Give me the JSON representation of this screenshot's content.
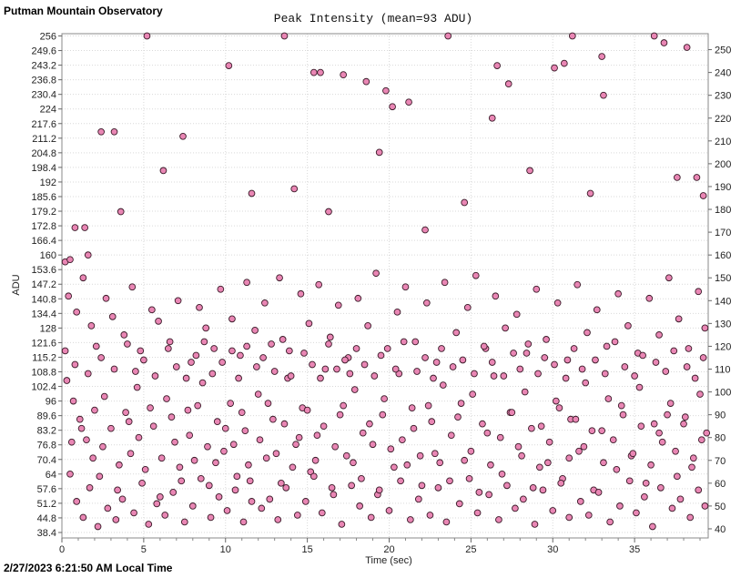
{
  "header": {
    "observatory": "Putman Mountain Observatory"
  },
  "footer": {
    "timestamp": "2/27/2023 6:21:50 AM Local Time"
  },
  "colors": {
    "point_fill": "#e986b4",
    "point_stroke": "#3a1a28",
    "grid": "#d9d9d9",
    "frame": "#888888"
  },
  "chart_data": {
    "type": "scatter",
    "title": "Peak Intensity (mean=93 ADU)",
    "xlabel": "Time (sec)",
    "ylabel": "ADU",
    "xlim": [
      0,
      39.5
    ],
    "ylim": [
      36,
      257
    ],
    "x_ticks": [
      "0",
      "5",
      "10",
      "15",
      "20",
      "25",
      "30",
      "35"
    ],
    "x_tick_values": [
      0,
      5,
      10,
      15,
      20,
      25,
      30,
      35
    ],
    "y_left_ticks": [
      "256",
      "249.6",
      "243.2",
      "236.8",
      "230.4",
      "224",
      "217.6",
      "211.2",
      "204.8",
      "198.4",
      "192",
      "185.6",
      "179.2",
      "172.8",
      "166.4",
      "160",
      "153.6",
      "147.2",
      "140.8",
      "134.4",
      "128",
      "121.6",
      "115.2",
      "108.8",
      "102.4",
      "96",
      "89.6",
      "83.2",
      "76.8",
      "70.4",
      "64",
      "57.6",
      "51.2",
      "44.8",
      "38.4"
    ],
    "y_right_ticks": [
      "250",
      "240",
      "230",
      "220",
      "210",
      "200",
      "190",
      "180",
      "170",
      "160",
      "150",
      "140",
      "130",
      "120",
      "110",
      "100",
      "90",
      "80",
      "70",
      "60",
      "50",
      "40"
    ],
    "grid": true,
    "mean": 93,
    "points": [
      [
        0.2,
        157
      ],
      [
        0.5,
        158
      ],
      [
        0.8,
        172
      ],
      [
        1.4,
        172
      ],
      [
        1.6,
        160
      ],
      [
        2.4,
        214
      ],
      [
        3.2,
        214
      ],
      [
        3.6,
        179
      ],
      [
        5.2,
        256
      ],
      [
        5.5,
        136
      ],
      [
        6.2,
        197
      ],
      [
        7.4,
        212
      ],
      [
        10.2,
        243
      ],
      [
        11.6,
        187
      ],
      [
        13.6,
        256
      ],
      [
        14.2,
        189
      ],
      [
        15.4,
        240
      ],
      [
        15.8,
        240
      ],
      [
        16.3,
        179
      ],
      [
        17.2,
        239
      ],
      [
        18.6,
        236
      ],
      [
        19.4,
        205
      ],
      [
        19.8,
        232
      ],
      [
        20.2,
        225
      ],
      [
        21.2,
        227
      ],
      [
        22.2,
        171
      ],
      [
        23.6,
        256
      ],
      [
        24.6,
        183
      ],
      [
        26.3,
        220
      ],
      [
        26.6,
        243
      ],
      [
        27.3,
        235
      ],
      [
        28.6,
        197
      ],
      [
        30.1,
        242
      ],
      [
        30.7,
        244
      ],
      [
        31.2,
        256
      ],
      [
        32.3,
        187
      ],
      [
        33.0,
        247
      ],
      [
        33.1,
        230
      ],
      [
        36.2,
        256
      ],
      [
        36.8,
        253
      ],
      [
        37.6,
        194
      ],
      [
        38.2,
        251
      ],
      [
        38.8,
        194
      ],
      [
        39.2,
        186
      ],
      [
        0.4,
        142
      ],
      [
        0.9,
        135
      ],
      [
        1.3,
        150
      ],
      [
        1.8,
        129
      ],
      [
        2.1,
        120
      ],
      [
        2.7,
        141
      ],
      [
        3.1,
        133
      ],
      [
        3.8,
        125
      ],
      [
        4.3,
        146
      ],
      [
        4.8,
        118
      ],
      [
        5.9,
        131
      ],
      [
        6.6,
        122
      ],
      [
        7.1,
        140
      ],
      [
        7.9,
        113
      ],
      [
        8.4,
        137
      ],
      [
        8.8,
        128
      ],
      [
        9.3,
        119
      ],
      [
        9.7,
        145
      ],
      [
        10.4,
        132
      ],
      [
        10.9,
        116
      ],
      [
        11.3,
        148
      ],
      [
        11.8,
        127
      ],
      [
        12.4,
        139
      ],
      [
        12.8,
        121
      ],
      [
        13.3,
        150
      ],
      [
        13.9,
        118
      ],
      [
        14.6,
        143
      ],
      [
        15.1,
        130
      ],
      [
        15.7,
        147
      ],
      [
        16.4,
        124
      ],
      [
        16.9,
        138
      ],
      [
        17.5,
        115
      ],
      [
        18.1,
        141
      ],
      [
        18.7,
        129
      ],
      [
        19.2,
        152
      ],
      [
        19.9,
        119
      ],
      [
        20.5,
        135
      ],
      [
        21.0,
        146
      ],
      [
        21.6,
        122
      ],
      [
        22.3,
        139
      ],
      [
        22.9,
        113
      ],
      [
        23.4,
        148
      ],
      [
        24.1,
        126
      ],
      [
        24.8,
        137
      ],
      [
        25.3,
        151
      ],
      [
        25.9,
        119
      ],
      [
        26.5,
        142
      ],
      [
        27.1,
        128
      ],
      [
        27.8,
        134
      ],
      [
        28.4,
        117
      ],
      [
        29.0,
        145
      ],
      [
        29.6,
        123
      ],
      [
        30.3,
        139
      ],
      [
        30.9,
        114
      ],
      [
        31.5,
        147
      ],
      [
        32.1,
        126
      ],
      [
        32.7,
        136
      ],
      [
        33.3,
        120
      ],
      [
        34.0,
        143
      ],
      [
        34.6,
        129
      ],
      [
        35.2,
        117
      ],
      [
        35.9,
        141
      ],
      [
        36.5,
        125
      ],
      [
        37.1,
        150
      ],
      [
        37.7,
        132
      ],
      [
        38.3,
        119
      ],
      [
        38.9,
        144
      ],
      [
        39.3,
        128
      ],
      [
        0.3,
        105
      ],
      [
        0.7,
        96
      ],
      [
        1.1,
        88
      ],
      [
        1.5,
        79
      ],
      [
        1.9,
        71
      ],
      [
        2.3,
        63
      ],
      [
        2.6,
        98
      ],
      [
        3.0,
        84
      ],
      [
        3.4,
        57
      ],
      [
        3.9,
        91
      ],
      [
        4.2,
        73
      ],
      [
        4.6,
        102
      ],
      [
        5.1,
        66
      ],
      [
        5.6,
        85
      ],
      [
        6.0,
        54
      ],
      [
        6.4,
        97
      ],
      [
        6.9,
        78
      ],
      [
        7.3,
        61
      ],
      [
        7.7,
        92
      ],
      [
        8.1,
        70
      ],
      [
        8.6,
        104
      ],
      [
        9.0,
        59
      ],
      [
        9.5,
        87
      ],
      [
        9.9,
        74
      ],
      [
        10.3,
        95
      ],
      [
        10.7,
        63
      ],
      [
        11.2,
        83
      ],
      [
        11.6,
        52
      ],
      [
        12.0,
        99
      ],
      [
        12.5,
        71
      ],
      [
        12.9,
        88
      ],
      [
        13.4,
        60
      ],
      [
        13.8,
        106
      ],
      [
        14.3,
        77
      ],
      [
        14.7,
        93
      ],
      [
        15.2,
        65
      ],
      [
        15.6,
        81
      ],
      [
        16.1,
        110
      ],
      [
        16.5,
        58
      ],
      [
        17.0,
        90
      ],
      [
        17.4,
        72
      ],
      [
        17.9,
        101
      ],
      [
        18.3,
        62
      ],
      [
        18.8,
        86
      ],
      [
        19.3,
        55
      ],
      [
        19.7,
        97
      ],
      [
        20.1,
        75
      ],
      [
        20.6,
        108
      ],
      [
        21.1,
        68
      ],
      [
        21.5,
        84
      ],
      [
        22.0,
        59
      ],
      [
        22.4,
        94
      ],
      [
        22.8,
        73
      ],
      [
        23.3,
        103
      ],
      [
        23.7,
        61
      ],
      [
        24.2,
        89
      ],
      [
        24.6,
        70
      ],
      [
        25.1,
        99
      ],
      [
        25.5,
        56
      ],
      [
        26.0,
        82
      ],
      [
        26.4,
        107
      ],
      [
        26.9,
        64
      ],
      [
        27.4,
        91
      ],
      [
        27.9,
        76
      ],
      [
        28.3,
        100
      ],
      [
        28.8,
        58
      ],
      [
        29.3,
        85
      ],
      [
        29.7,
        69
      ],
      [
        30.2,
        96
      ],
      [
        30.6,
        62
      ],
      [
        31.1,
        88
      ],
      [
        31.6,
        74
      ],
      [
        32.0,
        104
      ],
      [
        32.5,
        57
      ],
      [
        33.0,
        83
      ],
      [
        33.4,
        97
      ],
      [
        33.9,
        66
      ],
      [
        34.3,
        90
      ],
      [
        34.8,
        72
      ],
      [
        35.3,
        102
      ],
      [
        35.7,
        60
      ],
      [
        36.2,
        86
      ],
      [
        36.7,
        78
      ],
      [
        37.2,
        95
      ],
      [
        37.6,
        63
      ],
      [
        38.1,
        89
      ],
      [
        38.6,
        71
      ],
      [
        39.0,
        99
      ],
      [
        39.4,
        82
      ],
      [
        0.5,
        64
      ],
      [
        0.9,
        52
      ],
      [
        1.3,
        45
      ],
      [
        1.7,
        58
      ],
      [
        2.2,
        41
      ],
      [
        2.8,
        49
      ],
      [
        3.3,
        44
      ],
      [
        3.7,
        53
      ],
      [
        4.4,
        47
      ],
      [
        4.9,
        60
      ],
      [
        5.3,
        42
      ],
      [
        5.8,
        51
      ],
      [
        6.3,
        46
      ],
      [
        6.8,
        56
      ],
      [
        7.5,
        43
      ],
      [
        8.0,
        50
      ],
      [
        8.5,
        62
      ],
      [
        9.1,
        45
      ],
      [
        9.6,
        54
      ],
      [
        10.1,
        48
      ],
      [
        10.6,
        57
      ],
      [
        11.1,
        43
      ],
      [
        11.5,
        61
      ],
      [
        12.2,
        49
      ],
      [
        12.7,
        53
      ],
      [
        13.2,
        44
      ],
      [
        13.7,
        58
      ],
      [
        14.4,
        46
      ],
      [
        14.9,
        52
      ],
      [
        15.4,
        63
      ],
      [
        15.9,
        47
      ],
      [
        16.6,
        55
      ],
      [
        17.1,
        42
      ],
      [
        17.7,
        59
      ],
      [
        18.2,
        50
      ],
      [
        18.9,
        45
      ],
      [
        19.4,
        57
      ],
      [
        20.0,
        48
      ],
      [
        20.7,
        61
      ],
      [
        21.3,
        44
      ],
      [
        21.8,
        53
      ],
      [
        22.5,
        46
      ],
      [
        23.0,
        58
      ],
      [
        23.5,
        43
      ],
      [
        24.3,
        51
      ],
      [
        24.9,
        62
      ],
      [
        25.4,
        47
      ],
      [
        26.1,
        55
      ],
      [
        26.7,
        44
      ],
      [
        27.2,
        59
      ],
      [
        27.7,
        49
      ],
      [
        28.2,
        53
      ],
      [
        28.9,
        42
      ],
      [
        29.4,
        57
      ],
      [
        30.0,
        48
      ],
      [
        30.5,
        60
      ],
      [
        31.0,
        45
      ],
      [
        31.7,
        52
      ],
      [
        32.2,
        46
      ],
      [
        32.8,
        56
      ],
      [
        33.5,
        43
      ],
      [
        34.1,
        50
      ],
      [
        34.7,
        61
      ],
      [
        35.1,
        47
      ],
      [
        35.6,
        54
      ],
      [
        36.1,
        41
      ],
      [
        36.6,
        58
      ],
      [
        37.3,
        49
      ],
      [
        37.8,
        53
      ],
      [
        38.4,
        45
      ],
      [
        38.9,
        57
      ],
      [
        39.3,
        50
      ],
      [
        0.6,
        78
      ],
      [
        1.2,
        84
      ],
      [
        2.0,
        92
      ],
      [
        2.5,
        76
      ],
      [
        3.5,
        68
      ],
      [
        4.1,
        87
      ],
      [
        4.7,
        80
      ],
      [
        5.4,
        93
      ],
      [
        6.1,
        71
      ],
      [
        6.7,
        89
      ],
      [
        7.2,
        67
      ],
      [
        7.8,
        81
      ],
      [
        8.3,
        94
      ],
      [
        8.9,
        76
      ],
      [
        9.4,
        69
      ],
      [
        10.0,
        84
      ],
      [
        10.5,
        77
      ],
      [
        11.0,
        91
      ],
      [
        11.4,
        68
      ],
      [
        12.1,
        79
      ],
      [
        12.6,
        95
      ],
      [
        13.1,
        73
      ],
      [
        13.6,
        86
      ],
      [
        14.1,
        67
      ],
      [
        14.5,
        80
      ],
      [
        15.0,
        92
      ],
      [
        15.5,
        70
      ],
      [
        16.0,
        85
      ],
      [
        16.7,
        76
      ],
      [
        17.2,
        94
      ],
      [
        17.8,
        69
      ],
      [
        18.4,
        82
      ],
      [
        19.0,
        77
      ],
      [
        19.6,
        90
      ],
      [
        20.3,
        67
      ],
      [
        20.8,
        79
      ],
      [
        21.4,
        93
      ],
      [
        21.9,
        72
      ],
      [
        22.6,
        87
      ],
      [
        23.1,
        69
      ],
      [
        23.8,
        81
      ],
      [
        24.4,
        95
      ],
      [
        25.0,
        74
      ],
      [
        25.7,
        86
      ],
      [
        26.2,
        68
      ],
      [
        26.8,
        80
      ],
      [
        27.5,
        91
      ],
      [
        28.1,
        72
      ],
      [
        28.7,
        84
      ],
      [
        29.2,
        67
      ],
      [
        29.8,
        78
      ],
      [
        30.4,
        93
      ],
      [
        31.0,
        71
      ],
      [
        31.4,
        88
      ],
      [
        31.9,
        76
      ],
      [
        32.4,
        83
      ],
      [
        33.1,
        69
      ],
      [
        33.7,
        79
      ],
      [
        34.2,
        94
      ],
      [
        34.9,
        73
      ],
      [
        35.4,
        85
      ],
      [
        36.0,
        68
      ],
      [
        36.5,
        82
      ],
      [
        37.0,
        90
      ],
      [
        37.5,
        74
      ],
      [
        38.0,
        86
      ],
      [
        38.5,
        67
      ],
      [
        39.1,
        79
      ],
      [
        0.2,
        118
      ],
      [
        0.8,
        112
      ],
      [
        1.6,
        108
      ],
      [
        2.4,
        115
      ],
      [
        3.2,
        110
      ],
      [
        4.0,
        121
      ],
      [
        4.5,
        109
      ],
      [
        5.0,
        114
      ],
      [
        5.7,
        107
      ],
      [
        6.5,
        119
      ],
      [
        7.0,
        111
      ],
      [
        7.6,
        106
      ],
      [
        8.2,
        116
      ],
      [
        8.7,
        122
      ],
      [
        9.2,
        108
      ],
      [
        9.8,
        113
      ],
      [
        10.4,
        118
      ],
      [
        10.8,
        106
      ],
      [
        11.3,
        120
      ],
      [
        11.9,
        111
      ],
      [
        12.3,
        115
      ],
      [
        13.0,
        109
      ],
      [
        13.5,
        123
      ],
      [
        14.0,
        107
      ],
      [
        14.8,
        117
      ],
      [
        15.3,
        112
      ],
      [
        15.8,
        106
      ],
      [
        16.3,
        121
      ],
      [
        16.8,
        110
      ],
      [
        17.3,
        114
      ],
      [
        17.6,
        108
      ],
      [
        18.0,
        119
      ],
      [
        18.5,
        112
      ],
      [
        19.1,
        107
      ],
      [
        19.5,
        116
      ],
      [
        20.4,
        110
      ],
      [
        20.9,
        122
      ],
      [
        21.7,
        109
      ],
      [
        22.2,
        115
      ],
      [
        22.7,
        106
      ],
      [
        23.2,
        119
      ],
      [
        23.9,
        111
      ],
      [
        24.5,
        114
      ],
      [
        25.2,
        108
      ],
      [
        25.8,
        120
      ],
      [
        26.3,
        113
      ],
      [
        27.0,
        107
      ],
      [
        27.6,
        117
      ],
      [
        28.0,
        110
      ],
      [
        28.5,
        121
      ],
      [
        29.1,
        108
      ],
      [
        29.5,
        115
      ],
      [
        30.1,
        112
      ],
      [
        30.8,
        106
      ],
      [
        31.3,
        119
      ],
      [
        31.8,
        110
      ],
      [
        32.6,
        114
      ],
      [
        33.2,
        108
      ],
      [
        33.8,
        122
      ],
      [
        34.4,
        111
      ],
      [
        35.0,
        107
      ],
      [
        35.5,
        116
      ],
      [
        36.3,
        113
      ],
      [
        36.9,
        109
      ],
      [
        37.4,
        118
      ],
      [
        38.2,
        111
      ],
      [
        38.7,
        106
      ],
      [
        39.2,
        115
      ]
    ]
  }
}
